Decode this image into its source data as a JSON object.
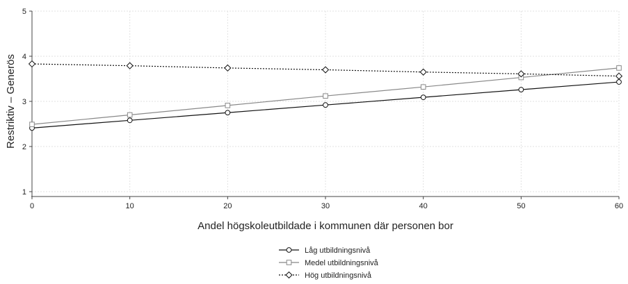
{
  "chart_data": {
    "type": "line",
    "title": "",
    "xlabel": "Andel högskoleutbildade i kommunen där personen bor",
    "ylabel": "Restriktiv – Generös",
    "xlim": [
      0,
      60
    ],
    "ylim": [
      1,
      5
    ],
    "x_ticks": [
      0,
      10,
      20,
      30,
      40,
      50,
      60
    ],
    "y_ticks": [
      1,
      2,
      3,
      4,
      5
    ],
    "grid": true,
    "legend_position": "bottom",
    "x": [
      0,
      10,
      20,
      30,
      40,
      50,
      60
    ],
    "series": [
      {
        "name": "Låg utbildningsnivå",
        "values": [
          2.41,
          2.58,
          2.75,
          2.92,
          3.09,
          3.26,
          3.43
        ],
        "color": "#111111",
        "marker": "circle",
        "line_style": "solid"
      },
      {
        "name": "Medel utbildningsnivå",
        "values": [
          2.49,
          2.7,
          2.91,
          3.12,
          3.32,
          3.53,
          3.74
        ],
        "color": "#888888",
        "marker": "square",
        "line_style": "solid"
      },
      {
        "name": "Hög utbildningsnivå",
        "values": [
          3.83,
          3.79,
          3.74,
          3.7,
          3.65,
          3.61,
          3.56
        ],
        "color": "#111111",
        "marker": "diamond",
        "line_style": "dotted"
      }
    ]
  }
}
